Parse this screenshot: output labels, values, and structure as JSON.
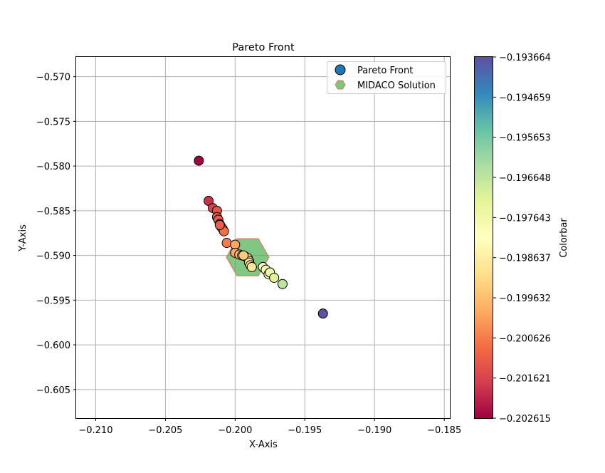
{
  "chart_data": {
    "type": "scatter",
    "title": "Pareto Front",
    "xlabel": "X-Axis",
    "ylabel": "Y-Axis",
    "xlim": [
      -0.2114,
      -0.1846
    ],
    "ylim": [
      -0.6082,
      -0.5678
    ],
    "xticks": [
      -0.21,
      -0.205,
      -0.2,
      -0.195,
      -0.19,
      -0.185
    ],
    "xtick_labels": [
      "−0.210",
      "−0.205",
      "−0.200",
      "−0.195",
      "−0.190",
      "−0.185"
    ],
    "yticks": [
      -0.57,
      -0.575,
      -0.58,
      -0.585,
      -0.59,
      -0.595,
      -0.6,
      -0.605
    ],
    "ytick_labels": [
      "−0.570",
      "−0.575",
      "−0.580",
      "−0.585",
      "−0.590",
      "−0.595",
      "−0.600",
      "−0.605"
    ],
    "grid": true,
    "legend_position": "upper right",
    "legend": [
      {
        "label": "Pareto Front",
        "marker": "circle",
        "color": "#1f77b4"
      },
      {
        "label": "MIDACO Solution",
        "marker": "hexagon",
        "color": "#7cc57c",
        "edge": "#e07a5f"
      }
    ],
    "colormap": "Spectral",
    "colorbar": {
      "label": "Colorbar",
      "range": [
        -0.202615,
        -0.193664
      ],
      "ticks": [
        -0.193664,
        -0.194659,
        -0.195653,
        -0.196648,
        -0.197643,
        -0.198637,
        -0.199632,
        -0.200626,
        -0.201621,
        -0.202615
      ],
      "tick_labels": [
        "−0.193664",
        "−0.194659",
        "−0.195653",
        "−0.196648",
        "−0.197643",
        "−0.198637",
        "−0.199632",
        "−0.200626",
        "−0.201621",
        "−0.202615"
      ]
    },
    "series": [
      {
        "name": "Pareto Front",
        "points": [
          {
            "x": -0.2026,
            "y": -0.5794
          },
          {
            "x": -0.2019,
            "y": -0.5839
          },
          {
            "x": -0.2016,
            "y": -0.5847
          },
          {
            "x": -0.2013,
            "y": -0.585
          },
          {
            "x": -0.2013,
            "y": -0.5857
          },
          {
            "x": -0.2012,
            "y": -0.586
          },
          {
            "x": -0.2011,
            "y": -0.5865
          },
          {
            "x": -0.201,
            "y": -0.5868
          },
          {
            "x": -0.2009,
            "y": -0.587
          },
          {
            "x": -0.2008,
            "y": -0.5873
          },
          {
            "x": -0.2011,
            "y": -0.5866
          },
          {
            "x": -0.2006,
            "y": -0.5886
          },
          {
            "x": -0.2,
            "y": -0.5888
          },
          {
            "x": -0.2,
            "y": -0.5897
          },
          {
            "x": -0.1997,
            "y": -0.5899
          },
          {
            "x": -0.1995,
            "y": -0.59
          },
          {
            "x": -0.1993,
            "y": -0.5901
          },
          {
            "x": -0.1991,
            "y": -0.5903
          },
          {
            "x": -0.199,
            "y": -0.5906
          },
          {
            "x": -0.199,
            "y": -0.5908
          },
          {
            "x": -0.1989,
            "y": -0.5911
          },
          {
            "x": -0.1988,
            "y": -0.5913
          },
          {
            "x": -0.198,
            "y": -0.5913
          },
          {
            "x": -0.1978,
            "y": -0.5916
          },
          {
            "x": -0.1976,
            "y": -0.5921
          },
          {
            "x": -0.1975,
            "y": -0.5919
          },
          {
            "x": -0.1972,
            "y": -0.5925
          },
          {
            "x": -0.1966,
            "y": -0.5932
          },
          {
            "x": -0.1994,
            "y": -0.59
          },
          {
            "x": -0.1937,
            "y": -0.5965
          }
        ]
      },
      {
        "name": "MIDACO Solution",
        "points": [
          {
            "x": -0.1991,
            "y": -0.5902
          }
        ]
      }
    ]
  }
}
